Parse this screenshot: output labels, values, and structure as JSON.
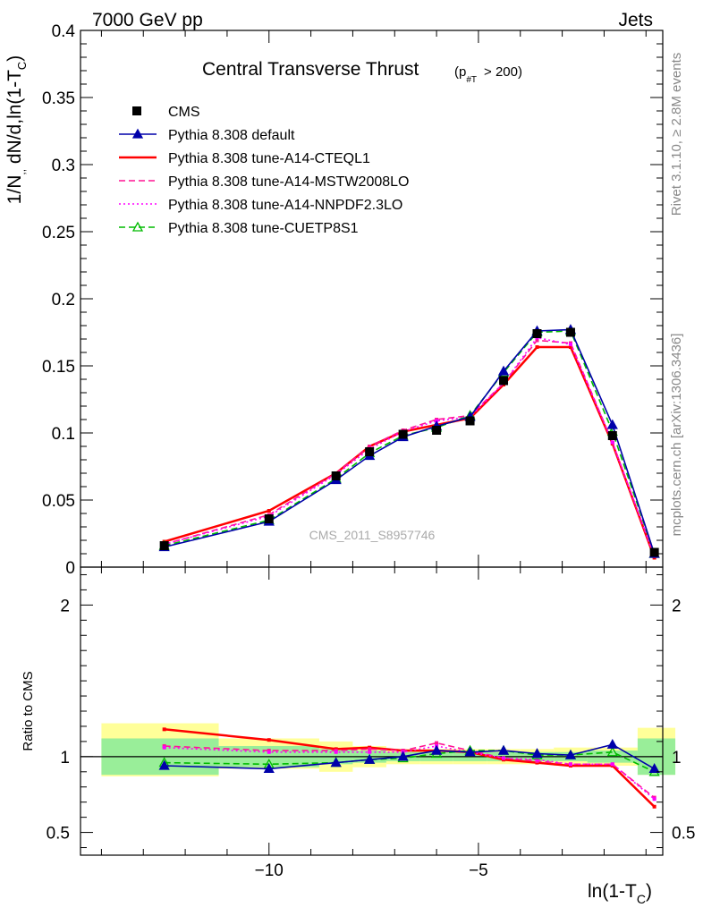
{
  "header": {
    "left": "7000 GeV pp",
    "right": "Jets"
  },
  "side_labels": {
    "rivet": "Rivet 3.1.10, ≥ 2.8M events",
    "mcplots": "mcplots.cern.ch [arXiv:1306.3436]"
  },
  "chart_data": [
    {
      "type": "line",
      "title_main": "Central Transverse Thrust",
      "title_cut": "(p_#T > 200)",
      "ylabel": "1/N dN/d ln(1-T_C)",
      "ylim": [
        0,
        0.4
      ],
      "xlim": [
        -14.5,
        -0.6
      ],
      "yticks": [
        "0",
        "0.05",
        "0.1",
        "0.15",
        "0.2",
        "0.25",
        "0.3",
        "0.35",
        "0.4"
      ],
      "analysis_label": "CMS_2011_S8957746",
      "legend_position": "top-left",
      "x": [
        -12.5,
        -10.0,
        -8.4,
        -7.6,
        -6.8,
        -6.0,
        -5.2,
        -4.4,
        -3.6,
        -2.8,
        -1.8,
        -0.8
      ],
      "series": [
        {
          "name": "CMS",
          "style": "data",
          "color": "#000000",
          "values": [
            0.016,
            0.036,
            0.068,
            0.086,
            0.099,
            0.102,
            0.109,
            0.139,
            0.174,
            0.175,
            0.098,
            0.011
          ]
        },
        {
          "name": "Pythia 8.308 default",
          "style": "solid-triangle",
          "color": "#0000aa",
          "values": [
            0.015,
            0.034,
            0.065,
            0.083,
            0.097,
            0.105,
            0.112,
            0.146,
            0.176,
            0.177,
            0.106,
            0.01
          ]
        },
        {
          "name": "Pythia 8.308 tune-A14-CTEQL1",
          "style": "solid",
          "color": "#ff0000",
          "values": [
            0.019,
            0.042,
            0.07,
            0.09,
            0.101,
            0.106,
            0.111,
            0.136,
            0.164,
            0.164,
            0.092,
            0.007
          ]
        },
        {
          "name": "Pythia 8.308 tune-A14-MSTW2008LO",
          "style": "dashed",
          "color": "#ff1493",
          "values": [
            0.017,
            0.039,
            0.07,
            0.09,
            0.102,
            0.11,
            0.113,
            0.137,
            0.169,
            0.167,
            0.093,
            0.008
          ]
        },
        {
          "name": "Pythia 8.308 tune-A14-NNPDF2.3LO",
          "style": "dotted",
          "color": "#ff00ff",
          "values": [
            0.017,
            0.038,
            0.069,
            0.088,
            0.101,
            0.109,
            0.112,
            0.137,
            0.171,
            0.166,
            0.093,
            0.008
          ]
        },
        {
          "name": "Pythia 8.308 tune-CUETP8S1",
          "style": "dashed-triangle",
          "color": "#00bb00",
          "values": [
            0.016,
            0.035,
            0.066,
            0.085,
            0.098,
            0.104,
            0.113,
            0.145,
            0.175,
            0.176,
            0.101,
            0.01
          ]
        }
      ]
    },
    {
      "type": "line",
      "ylabel": "Ratio to CMS",
      "xlabel": "ln(1-T_C)",
      "xlim": [
        -14.5,
        -0.6
      ],
      "ylim": [
        0.35,
        2.25
      ],
      "yticks": [
        "0.5",
        "1",
        "2"
      ],
      "xticks": [
        "−10",
        "−5"
      ],
      "reference": 1.0,
      "uncertainty_bands": [
        {
          "x_range": [
            -14.0,
            -11.2
          ],
          "inner": [
            0.88,
            1.12
          ],
          "outer": [
            0.87,
            1.22
          ]
        },
        {
          "x_range": [
            -11.2,
            -8.8
          ],
          "inner": [
            0.93,
            1.07
          ],
          "outer": [
            0.92,
            1.12
          ]
        },
        {
          "x_range": [
            -8.8,
            -8.0
          ],
          "inner": [
            0.95,
            1.05
          ],
          "outer": [
            0.9,
            1.1
          ]
        },
        {
          "x_range": [
            -8.0,
            -7.2
          ],
          "inner": [
            0.96,
            1.04
          ],
          "outer": [
            0.93,
            1.07
          ]
        },
        {
          "x_range": [
            -7.2,
            -6.4
          ],
          "inner": [
            0.97,
            1.03
          ],
          "outer": [
            0.95,
            1.05
          ]
        },
        {
          "x_range": [
            -6.4,
            -5.6
          ],
          "inner": [
            0.97,
            1.03
          ],
          "outer": [
            0.95,
            1.05
          ]
        },
        {
          "x_range": [
            -5.6,
            -4.8
          ],
          "inner": [
            0.97,
            1.03
          ],
          "outer": [
            0.95,
            1.05
          ]
        },
        {
          "x_range": [
            -4.8,
            -4.0
          ],
          "inner": [
            0.97,
            1.03
          ],
          "outer": [
            0.95,
            1.05
          ]
        },
        {
          "x_range": [
            -4.0,
            -3.2
          ],
          "inner": [
            0.97,
            1.03
          ],
          "outer": [
            0.95,
            1.05
          ]
        },
        {
          "x_range": [
            -3.2,
            -2.4
          ],
          "inner": [
            0.97,
            1.03
          ],
          "outer": [
            0.94,
            1.06
          ]
        },
        {
          "x_range": [
            -2.4,
            -1.2
          ],
          "inner": [
            0.96,
            1.04
          ],
          "outer": [
            0.94,
            1.06
          ]
        },
        {
          "x_range": [
            -1.2,
            -0.3
          ],
          "inner": [
            0.88,
            1.12
          ],
          "outer": [
            0.88,
            1.19
          ]
        }
      ],
      "series": [
        {
          "name": "Pythia 8.308 default",
          "color": "#0000aa",
          "values": [
            0.94,
            0.92,
            0.96,
            0.98,
            1.0,
            1.04,
            1.03,
            1.04,
            1.02,
            1.01,
            1.08,
            0.92
          ]
        },
        {
          "name": "Pythia 8.308 tune-A14-CTEQL1",
          "color": "#ff0000",
          "values": [
            1.18,
            1.11,
            1.05,
            1.06,
            1.04,
            1.04,
            1.03,
            0.98,
            0.96,
            0.94,
            0.94,
            0.67
          ]
        },
        {
          "name": "Pythia 8.308 tune-A14-MSTW2008LO",
          "color": "#ff1493",
          "values": [
            1.07,
            1.04,
            1.04,
            1.05,
            1.04,
            1.09,
            1.04,
            0.99,
            0.97,
            0.95,
            0.95,
            0.73
          ]
        },
        {
          "name": "Pythia 8.308 tune-A14-NNPDF2.3LO",
          "color": "#ff00ff",
          "values": [
            1.06,
            1.03,
            1.03,
            1.03,
            1.03,
            1.07,
            1.03,
            0.99,
            0.98,
            0.95,
            0.95,
            0.72
          ]
        },
        {
          "name": "Pythia 8.308 tune-CUETP8S1",
          "color": "#00bb00",
          "values": [
            0.96,
            0.95,
            0.96,
            0.98,
            0.99,
            1.02,
            1.04,
            1.04,
            1.01,
            1.01,
            1.03,
            0.9
          ]
        }
      ]
    }
  ]
}
